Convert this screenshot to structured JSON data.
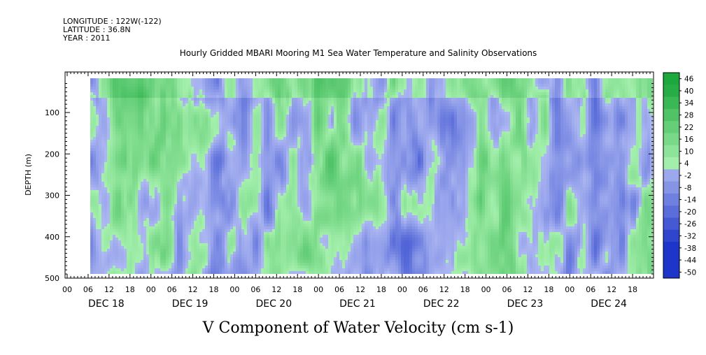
{
  "header": {
    "longitude": "LONGITUDE : 122W(-122)",
    "latitude": "LATITUDE : 36.8N",
    "year": "YEAR : 2011"
  },
  "chart_data": {
    "type": "heatmap",
    "title": "Hourly Gridded MBARI Mooring M1 Sea Water Temperature and Salinity Observations",
    "variable_title": "V Component of Water Velocity (cm s-1)",
    "ylabel": "DEPTH (m)",
    "yticks": [
      100,
      200,
      300,
      400,
      500
    ],
    "ylim": [
      500,
      20
    ],
    "x_hour_ticks": [
      "00",
      "06",
      "12",
      "18",
      "00",
      "06",
      "12",
      "18",
      "00",
      "06",
      "12",
      "18",
      "00",
      "06",
      "12",
      "18",
      "00",
      "06",
      "12",
      "18",
      "00",
      "06",
      "12",
      "18",
      "00",
      "06",
      "12",
      "18"
    ],
    "x_day_labels": [
      "DEC 18",
      "DEC 19",
      "DEC 20",
      "DEC 21",
      "DEC 22",
      "DEC 23",
      "DEC 24"
    ],
    "colorbar_levels": [
      "46",
      "40",
      "34",
      "28",
      "22",
      "16",
      "10",
      "4",
      "-2",
      "-8",
      "-14",
      "-20",
      "-26",
      "-32",
      "-38",
      "-44",
      "-50"
    ],
    "colors": {
      "neg_strong": "#1d35c8",
      "neg_weak": "#aeb8f2",
      "pos_weak": "#a6f0ae",
      "pos_strong": "#1ca83c"
    }
  }
}
